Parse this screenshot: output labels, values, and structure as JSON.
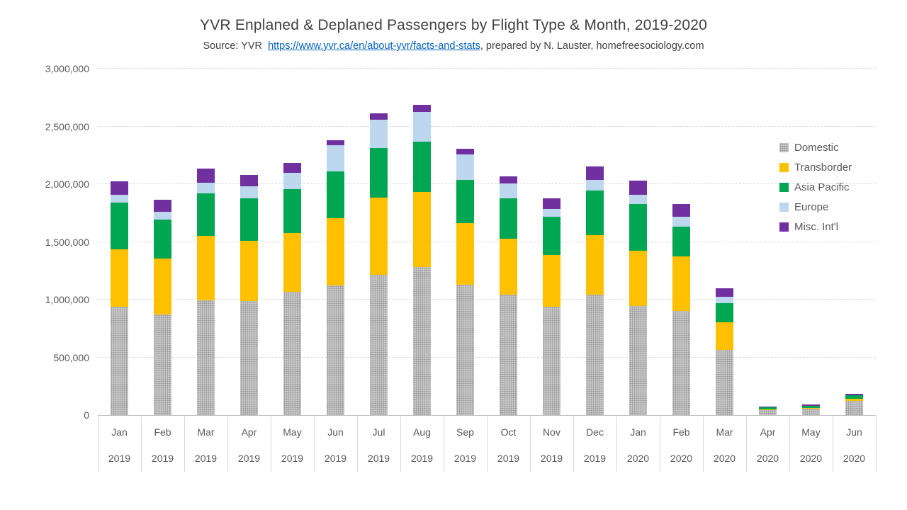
{
  "chart_data": {
    "type": "bar",
    "stacked": true,
    "title": "YVR Enplaned & Deplaned Passengers by Flight Type & Month, 2019-2020",
    "subtitle": {
      "prefix": "Source: YVR ",
      "link_text": "https://www.yvr.ca/en/about-yvr/facts-and-stats",
      "suffix": ", prepared by N. Lauster, homefreesociology.com"
    },
    "legend_position": "right",
    "grid": "horizontal-dashed",
    "ylim": [
      0,
      3000000
    ],
    "ytick_interval": 500000,
    "yticks": [
      {
        "value": 0,
        "label": "0"
      },
      {
        "value": 500000,
        "label": "500,000"
      },
      {
        "value": 1000000,
        "label": "1,000,000"
      },
      {
        "value": 1500000,
        "label": "1,500,000"
      },
      {
        "value": 2000000,
        "label": "2,000,000"
      },
      {
        "value": 2500000,
        "label": "2,500,000"
      },
      {
        "value": 3000000,
        "label": "3,000,000"
      }
    ],
    "categories": [
      {
        "month": "Jan",
        "year": "2019"
      },
      {
        "month": "Feb",
        "year": "2019"
      },
      {
        "month": "Mar",
        "year": "2019"
      },
      {
        "month": "Apr",
        "year": "2019"
      },
      {
        "month": "May",
        "year": "2019"
      },
      {
        "month": "Jun",
        "year": "2019"
      },
      {
        "month": "Jul",
        "year": "2019"
      },
      {
        "month": "Aug",
        "year": "2019"
      },
      {
        "month": "Sep",
        "year": "2019"
      },
      {
        "month": "Oct",
        "year": "2019"
      },
      {
        "month": "Nov",
        "year": "2019"
      },
      {
        "month": "Dec",
        "year": "2019"
      },
      {
        "month": "Jan",
        "year": "2020"
      },
      {
        "month": "Feb",
        "year": "2020"
      },
      {
        "month": "Mar",
        "year": "2020"
      },
      {
        "month": "Apr",
        "year": "2020"
      },
      {
        "month": "May",
        "year": "2020"
      },
      {
        "month": "Jun",
        "year": "2020"
      }
    ],
    "series": [
      {
        "key": "domestic",
        "name": "Domestic",
        "color": "#C9C9C9",
        "pattern": "dots",
        "values": [
          936000,
          871000,
          996000,
          990000,
          1068000,
          1123000,
          1217000,
          1281000,
          1129000,
          1045000,
          938000,
          1041000,
          946000,
          903000,
          565000,
          40000,
          55000,
          122000
        ]
      },
      {
        "key": "transborder",
        "name": "Transborder",
        "color": "#FFC000",
        "values": [
          500000,
          486000,
          558000,
          518000,
          506000,
          584000,
          664000,
          649000,
          531000,
          484000,
          450000,
          517000,
          477000,
          471000,
          241000,
          10000,
          8000,
          18000
        ]
      },
      {
        "key": "asia-pacific",
        "name": "Asia Pacific",
        "color": "#00A651",
        "values": [
          402000,
          334000,
          369000,
          367000,
          385000,
          406000,
          435000,
          437000,
          375000,
          348000,
          329000,
          390000,
          405000,
          258000,
          163000,
          15000,
          14000,
          30000
        ]
      },
      {
        "key": "europe",
        "name": "Europe",
        "color": "#BDD7EE",
        "values": [
          68000,
          72000,
          88000,
          109000,
          141000,
          223000,
          241000,
          258000,
          221000,
          129000,
          68000,
          86000,
          81000,
          83000,
          55000,
          2000,
          5000,
          4000
        ]
      },
      {
        "key": "misc-intl",
        "name": "Misc. Int'l",
        "color": "#7030A0",
        "values": [
          119000,
          105000,
          127000,
          96000,
          84000,
          47000,
          58000,
          60000,
          49000,
          61000,
          90000,
          119000,
          120000,
          112000,
          73000,
          7000,
          10000,
          12000
        ]
      }
    ],
    "colors": {
      "title_text": "#404040",
      "axis_text": "#595959",
      "gridline": "#D9D9D9",
      "axis_line": "#BFBFBF",
      "link": "#0563C1"
    }
  }
}
